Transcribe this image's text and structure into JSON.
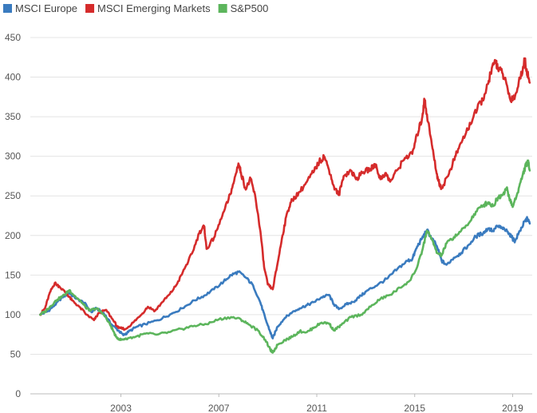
{
  "chart_data": {
    "type": "line",
    "title": "",
    "xlabel": "",
    "ylabel": "",
    "ylim": [
      0,
      450
    ],
    "xlim": [
      1999.3,
      2019.8
    ],
    "yticks": [
      0,
      50,
      100,
      150,
      200,
      250,
      300,
      350,
      400,
      450
    ],
    "xticks": [
      2003,
      2007,
      2011,
      2015,
      2019
    ],
    "grid": true,
    "legend_position": "top-left",
    "series": [
      {
        "name": "MSCI Europe",
        "color": "#3a7bbf",
        "points": [
          [
            1999.7,
            100
          ],
          [
            2000.0,
            104
          ],
          [
            2000.3,
            112
          ],
          [
            2000.6,
            122
          ],
          [
            2000.9,
            127
          ],
          [
            2001.2,
            120
          ],
          [
            2001.5,
            115
          ],
          [
            2001.8,
            103
          ],
          [
            2002.0,
            108
          ],
          [
            2002.3,
            102
          ],
          [
            2002.6,
            88
          ],
          [
            2002.9,
            80
          ],
          [
            2003.1,
            74
          ],
          [
            2003.3,
            78
          ],
          [
            2003.6,
            84
          ],
          [
            2004.0,
            88
          ],
          [
            2004.5,
            93
          ],
          [
            2005.0,
            100
          ],
          [
            2005.5,
            108
          ],
          [
            2006.0,
            118
          ],
          [
            2006.4,
            124
          ],
          [
            2006.8,
            132
          ],
          [
            2007.2,
            142
          ],
          [
            2007.5,
            150
          ],
          [
            2007.8,
            154
          ],
          [
            2008.1,
            147
          ],
          [
            2008.4,
            137
          ],
          [
            2008.7,
            115
          ],
          [
            2008.9,
            95
          ],
          [
            2009.1,
            78
          ],
          [
            2009.2,
            70
          ],
          [
            2009.4,
            85
          ],
          [
            2009.7,
            96
          ],
          [
            2010.0,
            103
          ],
          [
            2010.3,
            108
          ],
          [
            2010.6,
            112
          ],
          [
            2010.9,
            116
          ],
          [
            2011.2,
            122
          ],
          [
            2011.5,
            125
          ],
          [
            2011.7,
            113
          ],
          [
            2011.9,
            107
          ],
          [
            2012.2,
            113
          ],
          [
            2012.5,
            116
          ],
          [
            2012.8,
            124
          ],
          [
            2013.1,
            131
          ],
          [
            2013.5,
            138
          ],
          [
            2013.9,
            146
          ],
          [
            2014.3,
            158
          ],
          [
            2014.7,
            168
          ],
          [
            2014.9,
            170
          ],
          [
            2015.1,
            186
          ],
          [
            2015.3,
            196
          ],
          [
            2015.5,
            207
          ],
          [
            2015.7,
            196
          ],
          [
            2015.9,
            187
          ],
          [
            2016.1,
            168
          ],
          [
            2016.3,
            163
          ],
          [
            2016.6,
            172
          ],
          [
            2016.9,
            178
          ],
          [
            2017.2,
            188
          ],
          [
            2017.5,
            199
          ],
          [
            2017.8,
            203
          ],
          [
            2018.0,
            209
          ],
          [
            2018.2,
            206
          ],
          [
            2018.4,
            212
          ],
          [
            2018.6,
            208
          ],
          [
            2018.8,
            205
          ],
          [
            2019.0,
            196
          ],
          [
            2019.1,
            193
          ],
          [
            2019.3,
            206
          ],
          [
            2019.5,
            218
          ],
          [
            2019.6,
            221
          ],
          [
            2019.7,
            215
          ]
        ]
      },
      {
        "name": "MSCI Emerging Markets",
        "color": "#d52b2b",
        "points": [
          [
            1999.7,
            100
          ],
          [
            1999.9,
            108
          ],
          [
            2000.1,
            128
          ],
          [
            2000.3,
            140
          ],
          [
            2000.5,
            135
          ],
          [
            2000.8,
            126
          ],
          [
            2001.0,
            118
          ],
          [
            2001.3,
            110
          ],
          [
            2001.6,
            100
          ],
          [
            2001.9,
            93
          ],
          [
            2002.1,
            102
          ],
          [
            2002.4,
            106
          ],
          [
            2002.7,
            92
          ],
          [
            2002.9,
            83
          ],
          [
            2003.2,
            82
          ],
          [
            2003.5,
            90
          ],
          [
            2003.8,
            99
          ],
          [
            2004.1,
            110
          ],
          [
            2004.4,
            105
          ],
          [
            2004.7,
            116
          ],
          [
            2005.0,
            126
          ],
          [
            2005.3,
            139
          ],
          [
            2005.6,
            158
          ],
          [
            2005.9,
            177
          ],
          [
            2006.2,
            203
          ],
          [
            2006.4,
            212
          ],
          [
            2006.5,
            183
          ],
          [
            2006.8,
            197
          ],
          [
            2007.1,
            221
          ],
          [
            2007.4,
            246
          ],
          [
            2007.6,
            266
          ],
          [
            2007.8,
            291
          ],
          [
            2007.9,
            280
          ],
          [
            2008.1,
            258
          ],
          [
            2008.3,
            272
          ],
          [
            2008.5,
            247
          ],
          [
            2008.7,
            205
          ],
          [
            2008.85,
            160
          ],
          [
            2009.0,
            138
          ],
          [
            2009.2,
            132
          ],
          [
            2009.4,
            165
          ],
          [
            2009.6,
            200
          ],
          [
            2009.8,
            230
          ],
          [
            2010.0,
            245
          ],
          [
            2010.3,
            255
          ],
          [
            2010.6,
            268
          ],
          [
            2010.9,
            282
          ],
          [
            2011.1,
            293
          ],
          [
            2011.3,
            300
          ],
          [
            2011.5,
            283
          ],
          [
            2011.7,
            262
          ],
          [
            2011.9,
            251
          ],
          [
            2012.1,
            275
          ],
          [
            2012.4,
            282
          ],
          [
            2012.6,
            271
          ],
          [
            2012.9,
            280
          ],
          [
            2013.2,
            284
          ],
          [
            2013.4,
            290
          ],
          [
            2013.6,
            271
          ],
          [
            2013.8,
            279
          ],
          [
            2014.0,
            268
          ],
          [
            2014.3,
            283
          ],
          [
            2014.6,
            298
          ],
          [
            2014.9,
            303
          ],
          [
            2015.1,
            327
          ],
          [
            2015.3,
            348
          ],
          [
            2015.4,
            372
          ],
          [
            2015.5,
            353
          ],
          [
            2015.7,
            315
          ],
          [
            2015.9,
            278
          ],
          [
            2016.0,
            266
          ],
          [
            2016.1,
            260
          ],
          [
            2016.4,
            278
          ],
          [
            2016.6,
            295
          ],
          [
            2016.8,
            310
          ],
          [
            2017.1,
            330
          ],
          [
            2017.4,
            350
          ],
          [
            2017.7,
            368
          ],
          [
            2017.9,
            380
          ],
          [
            2018.1,
            405
          ],
          [
            2018.3,
            421
          ],
          [
            2018.4,
            412
          ],
          [
            2018.6,
            404
          ],
          [
            2018.8,
            385
          ],
          [
            2018.9,
            372
          ],
          [
            2019.1,
            376
          ],
          [
            2019.3,
            398
          ],
          [
            2019.5,
            422
          ],
          [
            2019.6,
            405
          ],
          [
            2019.7,
            393
          ]
        ]
      },
      {
        "name": "S&P500",
        "color": "#5cb55c",
        "points": [
          [
            1999.7,
            100
          ],
          [
            1999.9,
            104
          ],
          [
            2000.1,
            110
          ],
          [
            2000.4,
            119
          ],
          [
            2000.7,
            125
          ],
          [
            2000.9,
            131
          ],
          [
            2001.1,
            124
          ],
          [
            2001.4,
            115
          ],
          [
            2001.7,
            105
          ],
          [
            2002.0,
            108
          ],
          [
            2002.3,
            100
          ],
          [
            2002.6,
            85
          ],
          [
            2002.8,
            72
          ],
          [
            2003.0,
            68
          ],
          [
            2003.2,
            70
          ],
          [
            2003.6,
            72
          ],
          [
            2004.0,
            76
          ],
          [
            2004.5,
            75
          ],
          [
            2005.0,
            78
          ],
          [
            2005.5,
            82
          ],
          [
            2006.0,
            86
          ],
          [
            2006.5,
            88
          ],
          [
            2007.0,
            94
          ],
          [
            2007.5,
            97
          ],
          [
            2007.9,
            94
          ],
          [
            2008.2,
            88
          ],
          [
            2008.6,
            80
          ],
          [
            2008.9,
            68
          ],
          [
            2009.1,
            56
          ],
          [
            2009.2,
            52
          ],
          [
            2009.4,
            62
          ],
          [
            2009.7,
            68
          ],
          [
            2010.0,
            72
          ],
          [
            2010.3,
            79
          ],
          [
            2010.6,
            78
          ],
          [
            2010.9,
            84
          ],
          [
            2011.2,
            90
          ],
          [
            2011.5,
            89
          ],
          [
            2011.7,
            80
          ],
          [
            2012.0,
            87
          ],
          [
            2012.4,
            97
          ],
          [
            2012.8,
            100
          ],
          [
            2013.2,
            110
          ],
          [
            2013.6,
            120
          ],
          [
            2014.0,
            125
          ],
          [
            2014.4,
            134
          ],
          [
            2014.8,
            143
          ],
          [
            2015.1,
            160
          ],
          [
            2015.3,
            180
          ],
          [
            2015.5,
            206
          ],
          [
            2015.7,
            195
          ],
          [
            2015.9,
            178
          ],
          [
            2016.1,
            175
          ],
          [
            2016.3,
            190
          ],
          [
            2016.6,
            198
          ],
          [
            2016.9,
            206
          ],
          [
            2017.2,
            215
          ],
          [
            2017.5,
            230
          ],
          [
            2017.8,
            238
          ],
          [
            2018.0,
            242
          ],
          [
            2018.2,
            237
          ],
          [
            2018.4,
            248
          ],
          [
            2018.6,
            252
          ],
          [
            2018.75,
            260
          ],
          [
            2018.9,
            245
          ],
          [
            2019.0,
            236
          ],
          [
            2019.2,
            254
          ],
          [
            2019.4,
            275
          ],
          [
            2019.55,
            290
          ],
          [
            2019.65,
            292
          ],
          [
            2019.7,
            282
          ]
        ]
      }
    ]
  }
}
